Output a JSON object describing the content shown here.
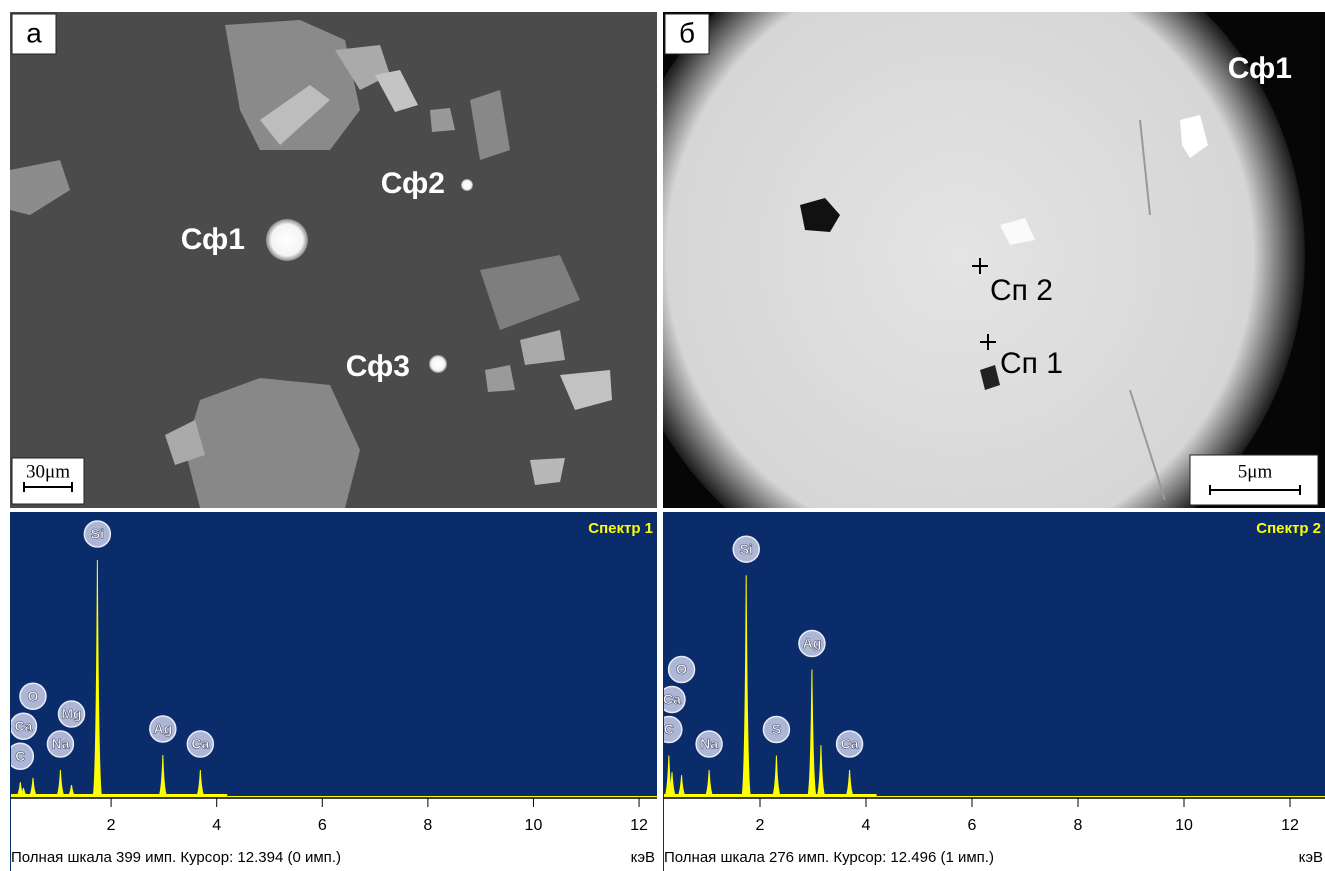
{
  "panels": [
    {
      "letter": "а",
      "labels": [
        "Сф1",
        "Сф2",
        "Сф3"
      ],
      "scale_bar": "30μm"
    },
    {
      "letter": "б",
      "title": "Сф1",
      "points": [
        "Сп 2",
        "Сп 1"
      ],
      "scale_bar": "5μm"
    }
  ],
  "chart_data": [
    {
      "type": "spectrum",
      "title": "Спектр 1",
      "x_unit": "кэВ",
      "footer": "Полная шкала 399 имп. Курсор: 12.394  (0 имп.)",
      "xlim": [
        0.085,
        12.34
      ],
      "ylim": [
        0,
        399
      ],
      "xticks": [
        2,
        4,
        6,
        8,
        10,
        12
      ],
      "color": "#ffff00",
      "x": [
        0.28,
        0.34,
        0.52,
        1.04,
        1.25,
        1.74,
        2.98,
        3.69
      ],
      "values": [
        22,
        14,
        28,
        39,
        18,
        332,
        60,
        39
      ],
      "peak_labels": [
        "C",
        "Ca",
        "O",
        "Na",
        "Mg",
        "Si",
        "Ag",
        "Ca"
      ]
    },
    {
      "type": "spectrum",
      "title": "Спектр 2",
      "x_unit": "кэВ",
      "footer": "Полная шкала 276 имп. Курсор: 12.496  (1 имп.)",
      "xlim": [
        0.17,
        12.66
      ],
      "ylim": [
        0,
        276
      ],
      "xticks": [
        2,
        4,
        6,
        8,
        10,
        12
      ],
      "color": "#ffff00",
      "x": [
        0.28,
        0.34,
        0.52,
        1.04,
        1.74,
        2.31,
        2.98,
        3.15,
        3.69
      ],
      "values": [
        41,
        25,
        22,
        27,
        215,
        41,
        124,
        51,
        27
      ],
      "peak_labels": [
        "C",
        "Ca",
        "O",
        "Na",
        "Si",
        "S",
        "Ag",
        null,
        "Ca"
      ]
    }
  ]
}
